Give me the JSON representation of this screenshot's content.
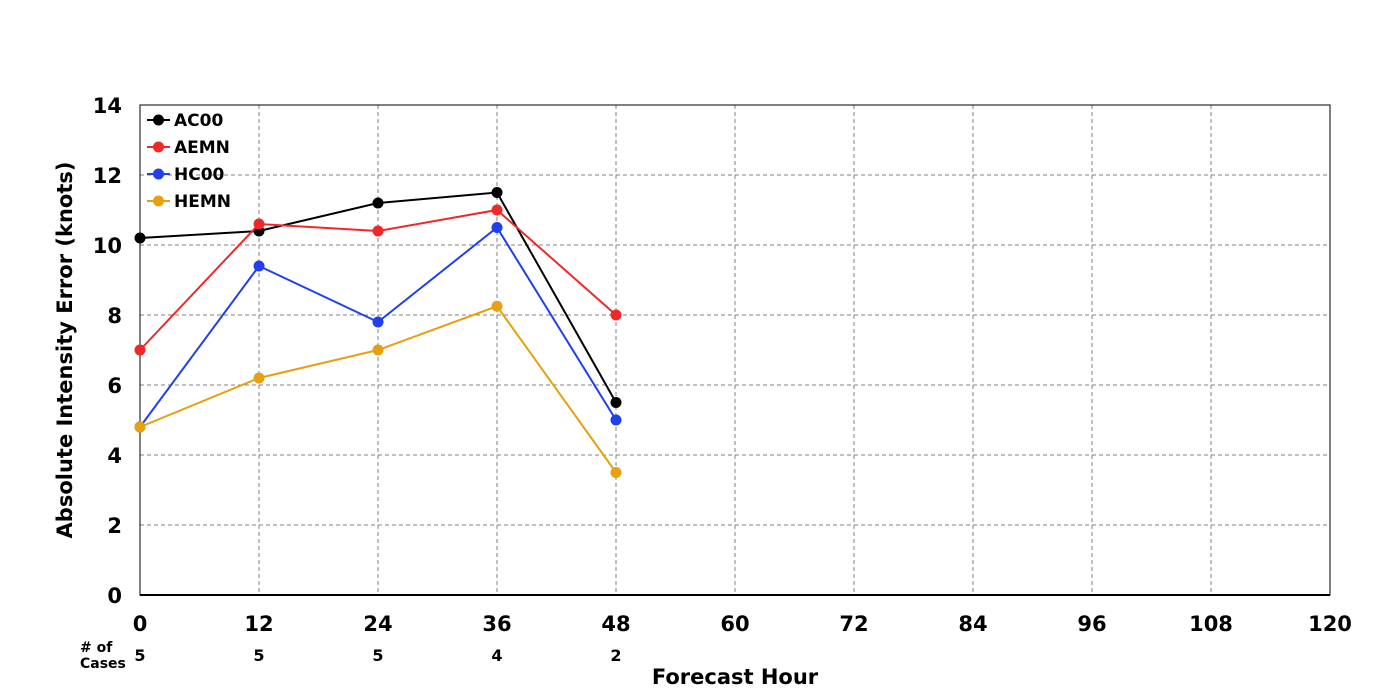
{
  "chart_data": {
    "type": "line",
    "title": "",
    "xlabel": "Forecast Hour",
    "ylabel": "Absolute Intensity Error (knots)",
    "xlim": [
      0,
      120
    ],
    "ylim": [
      0,
      14
    ],
    "x_ticks": [
      "0",
      "12",
      "24",
      "36",
      "48",
      "60",
      "72",
      "84",
      "96",
      "108",
      "120"
    ],
    "y_ticks": [
      "0",
      "2",
      "4",
      "6",
      "8",
      "10",
      "12",
      "14"
    ],
    "grid": true,
    "legend_position": "top-left",
    "x": [
      0,
      12,
      24,
      36,
      48
    ],
    "series": [
      {
        "name": "AC00",
        "color": "#000000",
        "values": [
          10.2,
          10.4,
          11.2,
          11.5,
          5.5
        ]
      },
      {
        "name": "AEMN",
        "color": "#f02828",
        "values": [
          7.0,
          10.6,
          10.4,
          11.0,
          8.0
        ]
      },
      {
        "name": "HC00",
        "color": "#2040f0",
        "values": [
          4.8,
          9.4,
          7.8,
          10.5,
          5.0
        ]
      },
      {
        "name": "HEMN",
        "color": "#e6a010",
        "values": [
          4.8,
          6.2,
          7.0,
          8.25,
          3.5
        ]
      }
    ],
    "cases": {
      "label_line1": "# of",
      "label_line2": "Cases",
      "values": [
        "5",
        "5",
        "5",
        "4",
        "2"
      ]
    }
  }
}
